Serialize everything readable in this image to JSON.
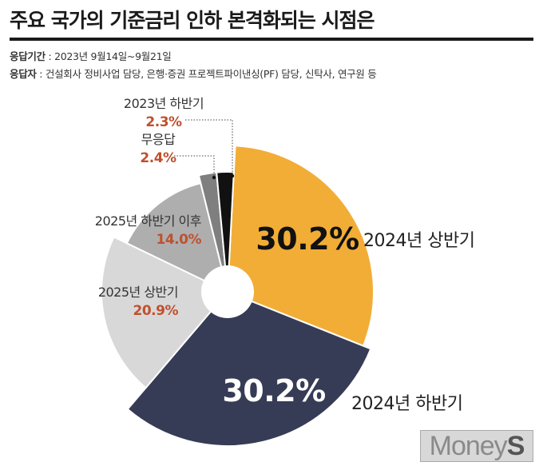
{
  "title": "주요 국가의 기준금리 인하 본격화되는 시점은",
  "survey_period_label": "응답기간",
  "survey_period_value": " : 2023년 9월14일~9월21일",
  "respondents_label": "응답자",
  "respondents_value": " : 건설회사 정비사업 담당, 은행·증권 프로젝트파이낸싱(PF) 담당, 신탁사, 연구원 등",
  "watermark_main": "Money",
  "watermark_s": "S",
  "colors": {
    "accent": "#f2ad36",
    "navy": "#363c56",
    "light_gray": "#d8d8d8",
    "mid_gray": "#aeaeae",
    "dark_gray": "#7f7f7f",
    "black": "#111111",
    "label_red": "#c0502e"
  },
  "chart_data": {
    "type": "pie",
    "style": "donut",
    "slices": [
      {
        "label": "2024년 상반기",
        "value": 30.2,
        "display": "30.2%",
        "color": "#f2ad36"
      },
      {
        "label": "2024년 하반기",
        "value": 30.2,
        "display": "30.2%",
        "color": "#363c56"
      },
      {
        "label": "2025년 상반기",
        "value": 20.9,
        "display": "20.9%",
        "color": "#d8d8d8"
      },
      {
        "label": "2025년 하반기 이후",
        "value": 14.0,
        "display": "14.0%",
        "color": "#aeaeae"
      },
      {
        "label": "무응답",
        "value": 2.4,
        "display": "2.4%",
        "color": "#7f7f7f"
      },
      {
        "label": "2023년 하반기",
        "value": 2.3,
        "display": "2.3%",
        "color": "#111111"
      }
    ]
  }
}
